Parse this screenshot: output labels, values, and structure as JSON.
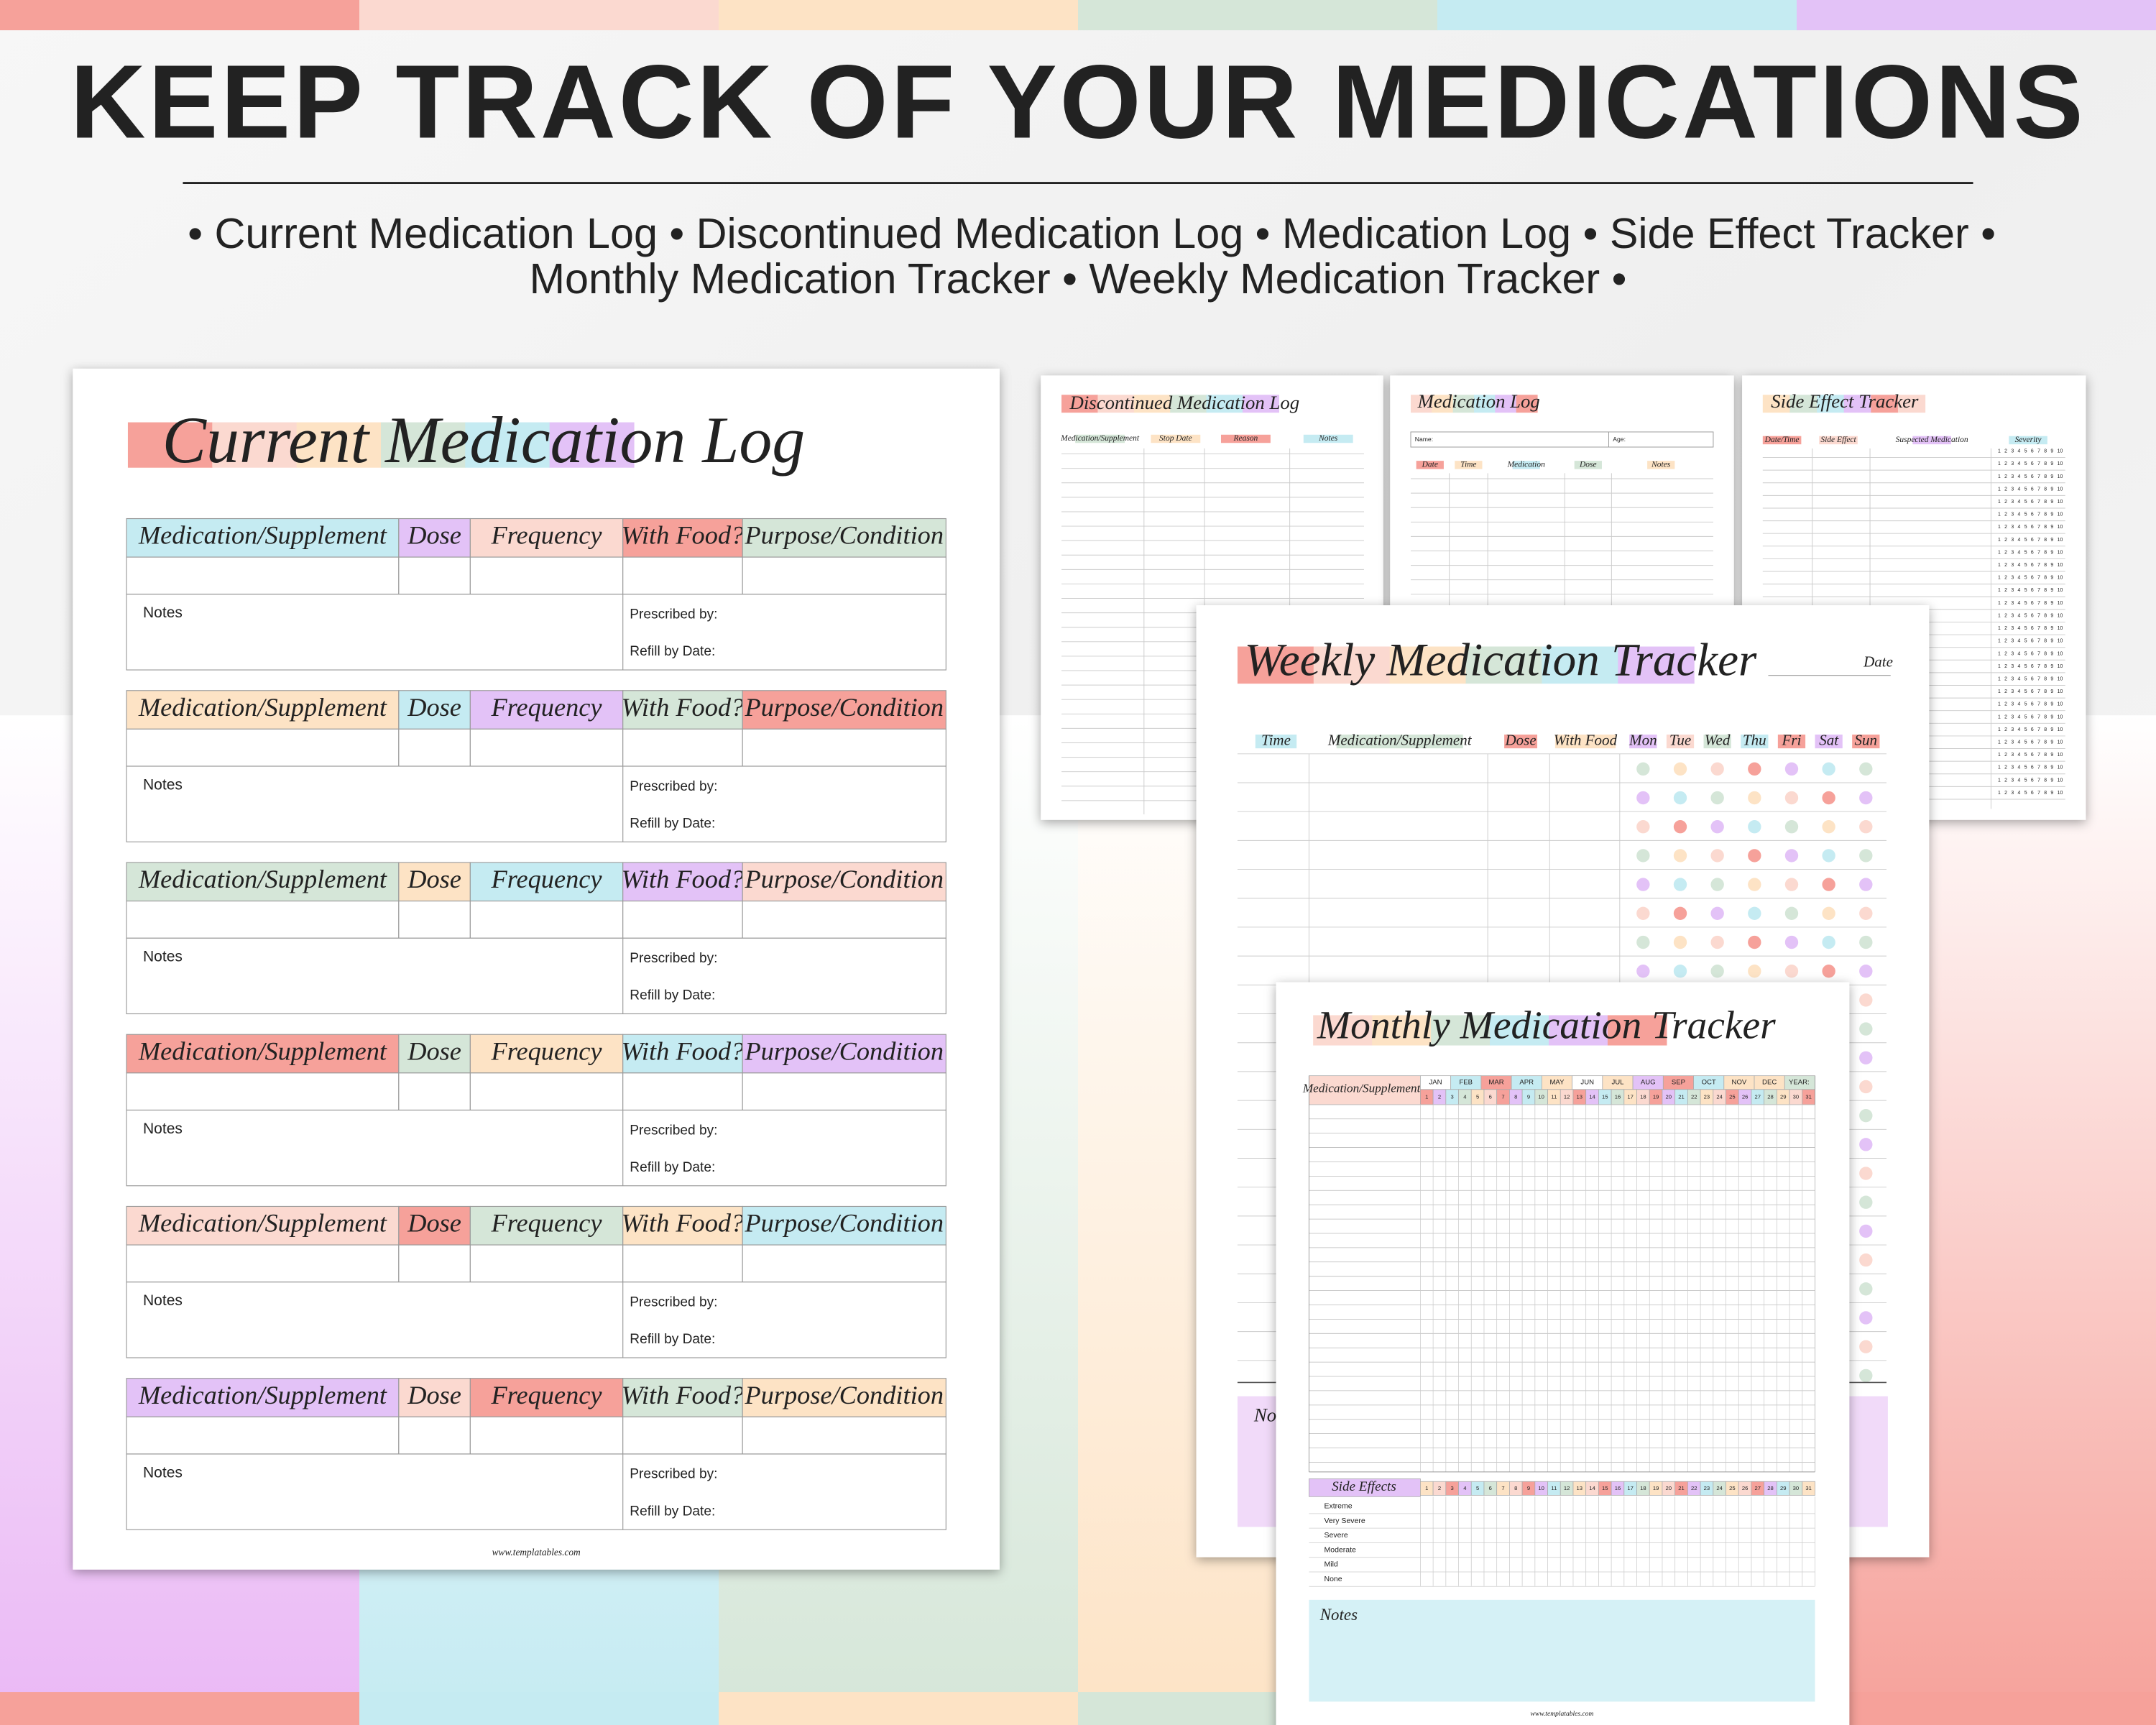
{
  "header": {
    "title": "KEEP TRACK OF YOUR MEDICATIONS",
    "subtitle_lines": [
      "• Current Medication Log • Discontinued Medication Log • Medication Log • Side Effect Tracker •",
      "Monthly Medication Tracker • Weekly Medication Tracker •"
    ]
  },
  "current_log": {
    "title": "Current Medication Log",
    "columns": [
      "Medication/Supplement",
      "Dose",
      "Frequency",
      "With Food?",
      "Purpose/Condition"
    ],
    "notes_label": "Notes",
    "prescribed_label": "Prescribed by:",
    "refill_label": "Refill by Date:",
    "footer": "www.templatables.com",
    "block_colors": [
      [
        "#c5ebf2",
        "#e3c2f7",
        "#fbd9d0",
        "#f6a19a",
        "#d5e6d8"
      ],
      [
        "#fde3c5",
        "#c5ebf2",
        "#e3c2f7",
        "#d5e6d8",
        "#f6a19a"
      ],
      [
        "#d5e6d8",
        "#fde3c5",
        "#c5ebf2",
        "#e3c2f7",
        "#fbd9d0"
      ],
      [
        "#f6a19a",
        "#d5e6d8",
        "#fde3c5",
        "#c5ebf2",
        "#e3c2f7"
      ],
      [
        "#fbd9d0",
        "#f6a19a",
        "#d5e6d8",
        "#fde3c5",
        "#c5ebf2"
      ],
      [
        "#e3c2f7",
        "#fbd9d0",
        "#f6a19a",
        "#d5e6d8",
        "#fde3c5"
      ]
    ]
  },
  "discontinued_log": {
    "title": "Discontinued Medication Log",
    "columns": [
      "Medication/Supplement",
      "Stop Date",
      "Reason",
      "Notes"
    ]
  },
  "medication_log": {
    "title": "Medication Log",
    "name_label": "Name:",
    "age_label": "Age:",
    "columns": [
      "Date",
      "Time",
      "Medication",
      "Dose",
      "Notes"
    ]
  },
  "side_effect_tracker": {
    "title": "Side Effect Tracker",
    "columns": [
      "Date/Time",
      "Side Effect",
      "Suspected Medication",
      "Severity"
    ],
    "severity_scale": [
      1,
      2,
      3,
      4,
      5,
      6,
      7,
      8,
      9,
      10
    ]
  },
  "weekly_tracker": {
    "title": "Weekly Medication Tracker",
    "date_label": "Date",
    "columns": [
      "Time",
      "Medication/Supplement",
      "Dose",
      "With Food"
    ],
    "days": [
      "Mon",
      "Tue",
      "Wed",
      "Thu",
      "Fri",
      "Sat",
      "Sun"
    ],
    "notes_label": "Notes"
  },
  "monthly_tracker": {
    "title": "Monthly Medication Tracker",
    "item_label": "Medication/Supplements",
    "months": [
      "JAN",
      "FEB",
      "MAR",
      "APR",
      "MAY",
      "JUN",
      "JUL",
      "AUG",
      "SEP",
      "OCT",
      "NOV",
      "DEC"
    ],
    "year_label": "YEAR:",
    "days": [
      1,
      2,
      3,
      4,
      5,
      6,
      7,
      8,
      9,
      10,
      11,
      12,
      13,
      14,
      15,
      16,
      17,
      18,
      19,
      20,
      21,
      22,
      23,
      24,
      25,
      26,
      27,
      28,
      29,
      30,
      31
    ],
    "side_effects_label": "Side Effects",
    "severity_levels": [
      "Extreme",
      "Very Severe",
      "Severe",
      "Moderate",
      "Mild",
      "None"
    ],
    "notes_label": "Notes",
    "footer": "www.templatables.com"
  }
}
